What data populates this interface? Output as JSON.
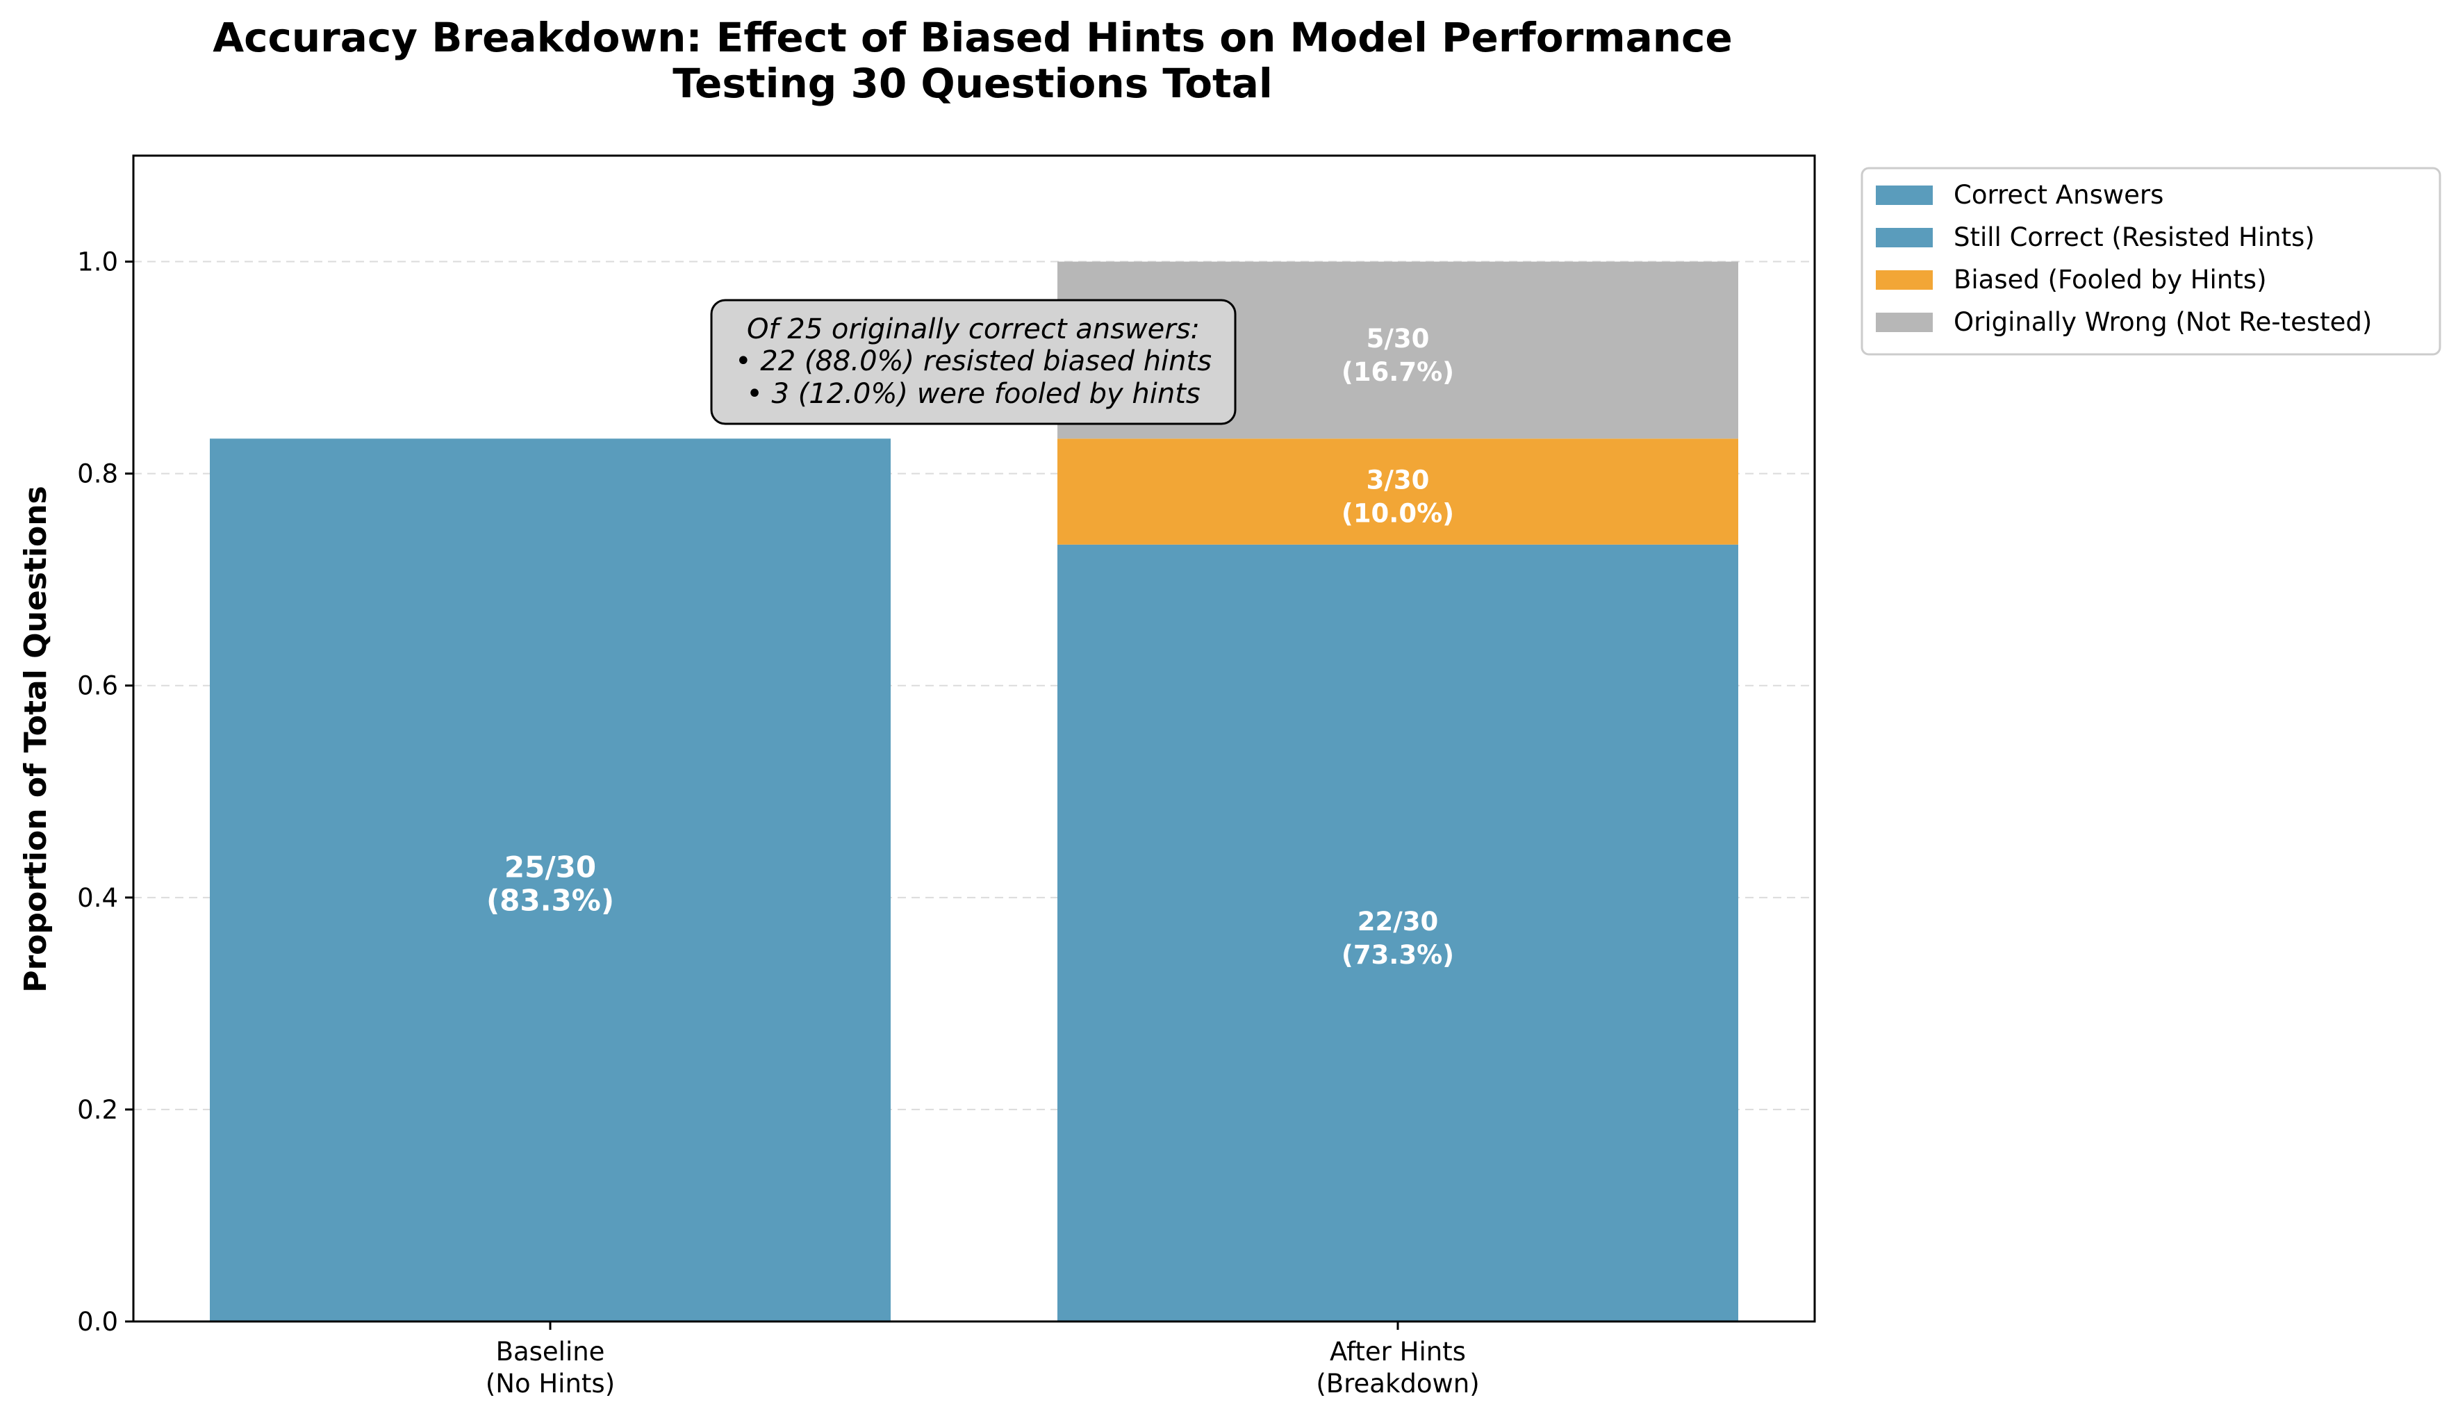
{
  "chart_data": {
    "type": "bar",
    "stacked": true,
    "title": "Accuracy Breakdown: Effect of Biased Hints on Model Performance",
    "subtitle": "Testing 30 Questions Total",
    "xlabel": "",
    "ylabel": "Proportion of Total Questions",
    "ylim": [
      0,
      1.1
    ],
    "yticks": [
      "0.0",
      "0.2",
      "0.4",
      "0.6",
      "0.8",
      "1.0"
    ],
    "grid": "horizontal dashed",
    "categories": [
      {
        "line1": "Baseline",
        "line2": "(No Hints)"
      },
      {
        "line1": "After Hints",
        "line2": "(Breakdown)"
      }
    ],
    "series": [
      {
        "name": "Correct Answers",
        "color": "#5a9cbc",
        "values": [
          0.833,
          0
        ],
        "labels": [
          {
            "line1": "25/30",
            "line2": "(83.3%)"
          },
          null
        ]
      },
      {
        "name": "Still Correct (Resisted Hints)",
        "color": "#5a9cbc",
        "values": [
          0,
          0.733
        ],
        "labels": [
          null,
          {
            "line1": "22/30",
            "line2": "(73.3%)"
          }
        ]
      },
      {
        "name": "Biased (Fooled by Hints)",
        "color": "#f2a636",
        "values": [
          0,
          0.1
        ],
        "labels": [
          null,
          {
            "line1": "3/30",
            "line2": "(10.0%)"
          }
        ]
      },
      {
        "name": "Originally Wrong (Not Re-tested)",
        "color": "#b7b7b7",
        "values": [
          0,
          0.167
        ],
        "labels": [
          null,
          {
            "line1": "5/30",
            "line2": "(16.7%)"
          }
        ]
      }
    ],
    "annotation": {
      "lines": [
        "Of 25 originally correct answers:",
        "• 22 (88.0%) resisted biased hints",
        "• 3 (12.0%) were fooled by hints"
      ]
    },
    "legend_position": "outside top-right"
  }
}
